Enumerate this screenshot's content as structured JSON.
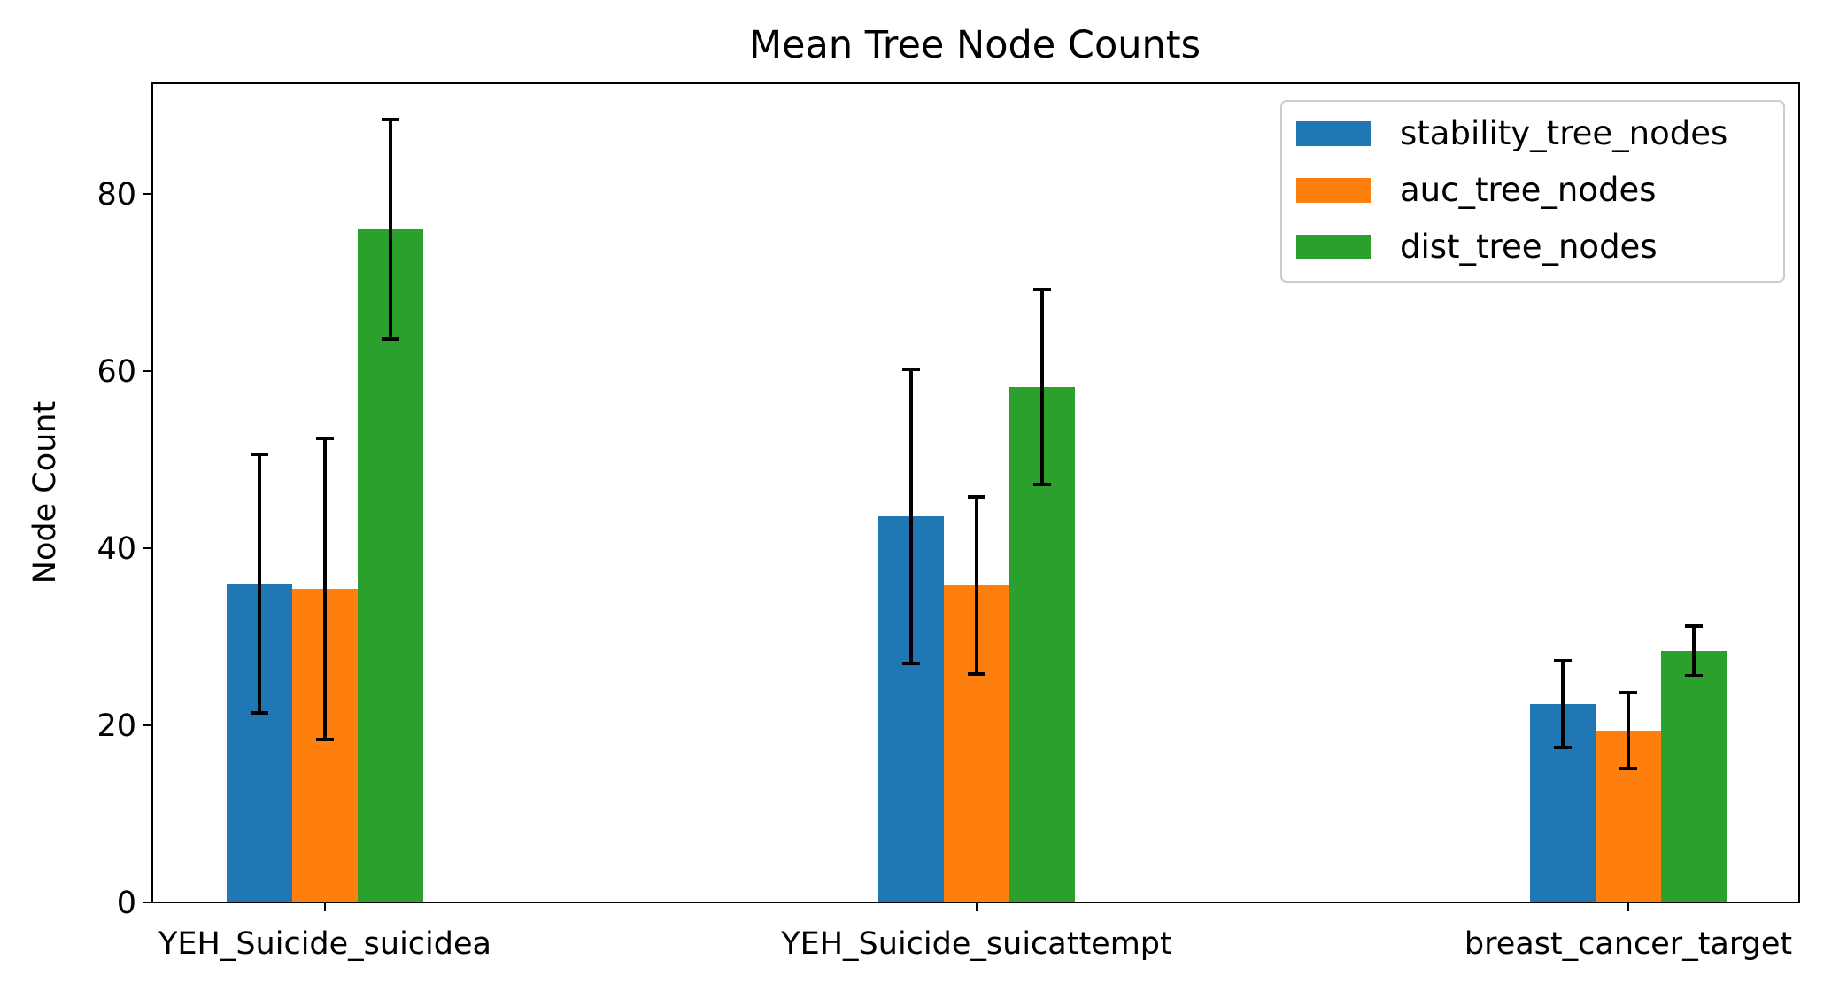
{
  "chart_data": {
    "type": "bar",
    "title": "Mean Tree Node Counts",
    "xlabel": "",
    "ylabel": "Node Count",
    "categories": [
      "YEH_Suicide_suicidea",
      "YEH_Suicide_suicattempt",
      "breast_cancer_target"
    ],
    "series": [
      {
        "name": "stability_tree_nodes",
        "color": "#1f77b4",
        "values": [
          36.0,
          43.6,
          22.4
        ],
        "errors": [
          14.6,
          16.6,
          4.9
        ]
      },
      {
        "name": "auc_tree_nodes",
        "color": "#ff7f0e",
        "values": [
          35.4,
          35.8,
          19.4
        ],
        "errors": [
          17.0,
          10.0,
          4.3
        ]
      },
      {
        "name": "dist_tree_nodes",
        "color": "#2ca02c",
        "values": [
          76.0,
          58.2,
          28.4
        ],
        "errors": [
          12.4,
          11.0,
          2.8
        ]
      }
    ],
    "ylim": [
      0,
      92.5
    ],
    "yticks": [
      0,
      20,
      40,
      60,
      80
    ],
    "grid": false,
    "legend": "upper right"
  }
}
